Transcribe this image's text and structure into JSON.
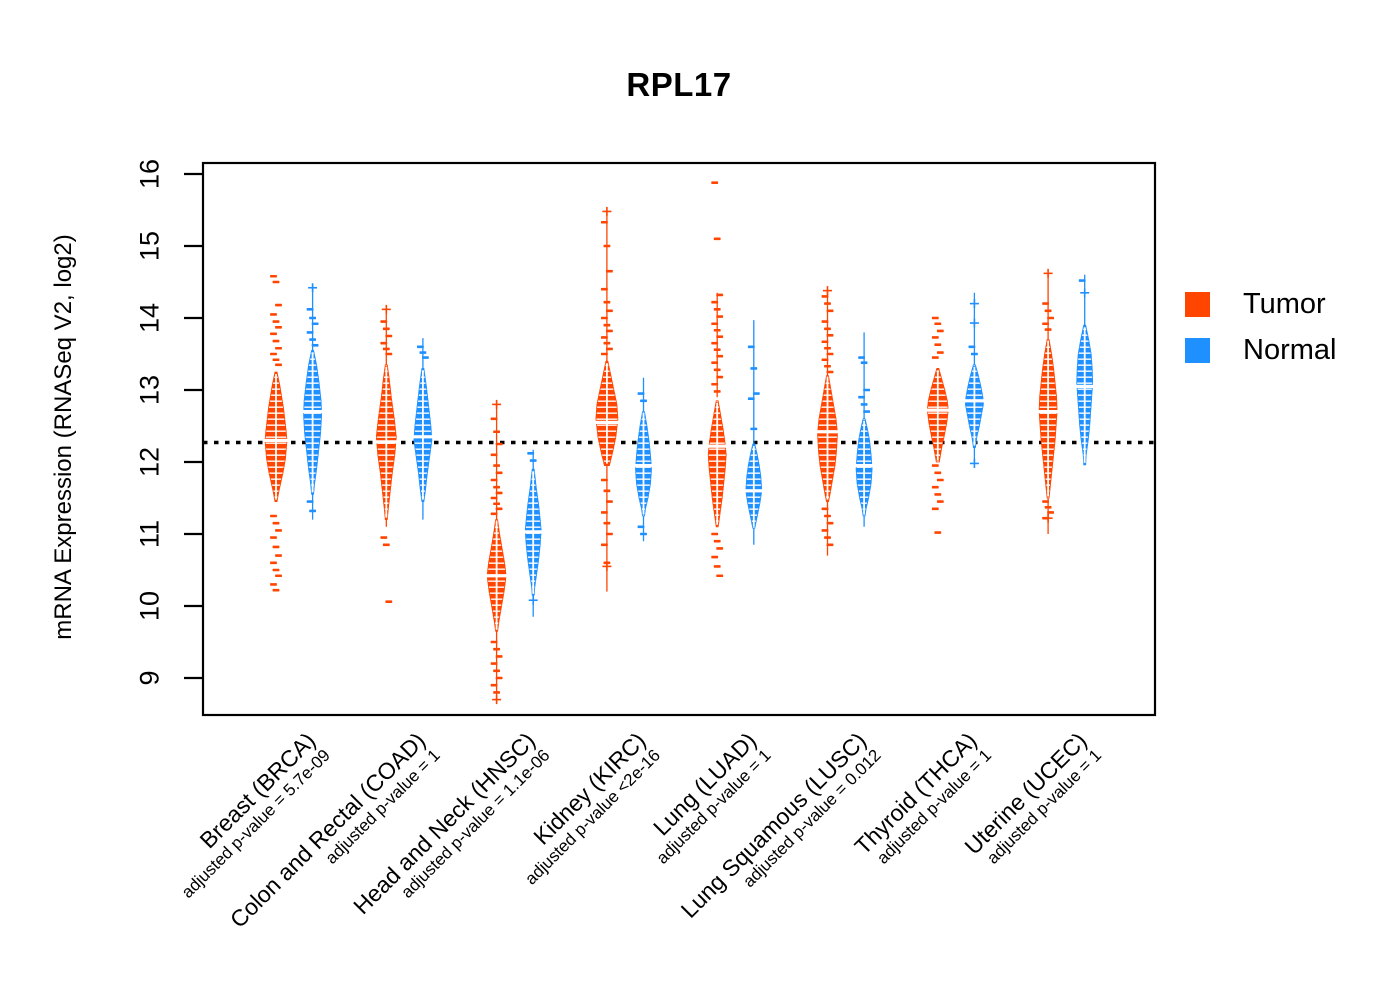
{
  "title": "RPL17",
  "y_axis": {
    "label": "mRNA Expression (RNASeq V2, log2)",
    "ticks": [
      9,
      10,
      11,
      12,
      13,
      14,
      15,
      16
    ]
  },
  "legend": {
    "items": [
      {
        "label": "Tumor",
        "color": "#FF4500"
      },
      {
        "label": "Normal",
        "color": "#1E90FF"
      }
    ]
  },
  "chart_data": {
    "type": "violin",
    "title": "RPL17",
    "ylabel": "mRNA Expression (RNASeq V2, log2)",
    "ylim": [
      8.6,
      16.1
    ],
    "yticks": [
      9,
      10,
      11,
      12,
      13,
      14,
      15,
      16
    ],
    "baseline_value": 12.27,
    "legend_position": "right",
    "series_names": [
      "Tumor",
      "Normal"
    ],
    "colors": {
      "tumor": "#FF4500",
      "normal": "#1E90FF"
    },
    "groups": [
      {
        "label": "Breast (BRCA)",
        "pvalue_label": "adjusted p-value = 5.7e-09",
        "tumor": {
          "median": 12.3,
          "profile": [
            [
              13.25,
              1
            ],
            [
              13.05,
              4
            ],
            [
              12.75,
              7.5
            ],
            [
              12.45,
              10
            ],
            [
              12.3,
              11
            ],
            [
              12.05,
              9.5
            ],
            [
              11.85,
              7
            ],
            [
              11.6,
              3
            ],
            [
              11.45,
              1
            ]
          ],
          "stem": null,
          "plus": [],
          "outliers_above": [
            14.58,
            14.5,
            14.18,
            14.05,
            13.95,
            13.87,
            13.78,
            13.68,
            13.58,
            13.5,
            13.42,
            13.35
          ],
          "outliers_below": [
            11.25,
            11.15,
            11.05,
            10.95,
            10.82,
            10.7,
            10.6,
            10.5,
            10.42,
            10.3,
            10.22
          ]
        },
        "normal": {
          "median": 12.7,
          "profile": [
            [
              13.55,
              1
            ],
            [
              13.35,
              4
            ],
            [
              13.1,
              6.5
            ],
            [
              12.85,
              8.5
            ],
            [
              12.65,
              9
            ],
            [
              12.4,
              8
            ],
            [
              12.15,
              6
            ],
            [
              11.9,
              4
            ],
            [
              11.7,
              2
            ],
            [
              11.55,
              1
            ]
          ],
          "stem": [
            11.2,
            14.45
          ],
          "plus": [
            14.42
          ],
          "outliers_above": [
            14.12,
            14.0,
            13.92,
            13.8,
            13.7,
            13.62
          ],
          "outliers_below": [
            11.45,
            11.32
          ]
        }
      },
      {
        "label": "Colon and Rectal (COAD)",
        "pvalue_label": "adjusted p-value = 1",
        "tumor": {
          "median": 12.28,
          "profile": [
            [
              13.35,
              1
            ],
            [
              13.15,
              3
            ],
            [
              12.9,
              5
            ],
            [
              12.6,
              8
            ],
            [
              12.35,
              10
            ],
            [
              12.1,
              8.5
            ],
            [
              11.85,
              6
            ],
            [
              11.6,
              4
            ],
            [
              11.35,
              2
            ],
            [
              11.2,
              1
            ]
          ],
          "stem": [
            11.1,
            14.12
          ],
          "plus": [
            14.12
          ],
          "outliers_above": [
            13.95,
            13.85,
            13.75,
            13.65,
            13.57,
            13.5
          ],
          "outliers_below": [
            10.95,
            10.85,
            10.06
          ]
        },
        "normal": {
          "median": 12.35,
          "profile": [
            [
              13.3,
              1
            ],
            [
              13.05,
              3.5
            ],
            [
              12.75,
              6
            ],
            [
              12.5,
              8
            ],
            [
              12.3,
              9
            ],
            [
              12.1,
              7
            ],
            [
              11.85,
              4.5
            ],
            [
              11.6,
              2.5
            ],
            [
              11.45,
              1
            ]
          ],
          "stem": [
            11.2,
            13.72
          ],
          "plus": [],
          "outliers_above": [
            13.6,
            13.52,
            13.45
          ],
          "outliers_below": []
        }
      },
      {
        "label": "Head and Neck (HNSC)",
        "pvalue_label": "adjusted p-value = 1.1e-06",
        "tumor": {
          "median": 10.42,
          "profile": [
            [
              11.2,
              1
            ],
            [
              11.0,
              3
            ],
            [
              10.8,
              5.5
            ],
            [
              10.6,
              8
            ],
            [
              10.42,
              9.5
            ],
            [
              10.2,
              7.5
            ],
            [
              10.0,
              5
            ],
            [
              9.8,
              2.5
            ],
            [
              9.65,
              1
            ]
          ],
          "stem": [
            8.7,
            12.8
          ],
          "plus": [
            12.8,
            8.7
          ],
          "outliers_above": [
            12.6,
            12.42,
            12.25,
            12.1,
            11.95,
            11.85,
            11.75,
            11.65,
            11.57,
            11.5,
            11.42,
            11.35,
            11.28
          ],
          "outliers_below": [
            9.5,
            9.4,
            9.3,
            9.2,
            9.1,
            9.0,
            8.9,
            8.8
          ]
        },
        "normal": {
          "median": 11.03,
          "profile": [
            [
              11.9,
              1
            ],
            [
              11.65,
              3
            ],
            [
              11.4,
              5.5
            ],
            [
              11.2,
              7
            ],
            [
              11.05,
              8
            ],
            [
              10.85,
              7
            ],
            [
              10.65,
              5.5
            ],
            [
              10.45,
              3.5
            ],
            [
              10.25,
              1.5
            ],
            [
              10.15,
              1
            ]
          ],
          "stem": [
            9.85,
            12.17
          ],
          "plus": [
            10.08
          ],
          "outliers_above": [
            12.12,
            12.02
          ],
          "outliers_below": []
        }
      },
      {
        "label": "Kidney (KIRC)",
        "pvalue_label": "adjusted p-value <2e-16",
        "tumor": {
          "median": 12.55,
          "profile": [
            [
              13.4,
              1
            ],
            [
              13.2,
              4
            ],
            [
              13.0,
              7
            ],
            [
              12.8,
              10
            ],
            [
              12.6,
              11
            ],
            [
              12.35,
              9
            ],
            [
              12.15,
              6
            ],
            [
              11.95,
              2.5
            ]
          ],
          "stem": [
            10.2,
            15.48
          ],
          "plus": [
            15.48,
            10.55
          ],
          "outliers_above": [
            15.33,
            15.0,
            14.65,
            14.4,
            14.22,
            14.1,
            14.0,
            13.9,
            13.82,
            13.73,
            13.65,
            13.57,
            13.5
          ],
          "outliers_below": [
            11.75,
            11.6,
            11.45,
            11.3,
            11.15,
            11.0,
            10.85,
            10.6
          ]
        },
        "normal": {
          "median": 11.95,
          "profile": [
            [
              12.7,
              1
            ],
            [
              12.5,
              3.5
            ],
            [
              12.3,
              5.5
            ],
            [
              12.1,
              7
            ],
            [
              11.9,
              8
            ],
            [
              11.7,
              7
            ],
            [
              11.5,
              4.5
            ],
            [
              11.35,
              2
            ],
            [
              11.25,
              1
            ]
          ],
          "stem": [
            10.9,
            13.17
          ],
          "plus": [],
          "outliers_above": [
            12.95,
            12.85
          ],
          "outliers_below": [
            11.1,
            11.0
          ]
        }
      },
      {
        "label": "Lung (LUAD)",
        "pvalue_label": "adjusted p-value = 1",
        "tumor": {
          "median": 12.22,
          "profile": [
            [
              12.85,
              1
            ],
            [
              12.65,
              3.5
            ],
            [
              12.45,
              6
            ],
            [
              12.25,
              8
            ],
            [
              12.1,
              9
            ],
            [
              11.9,
              8
            ],
            [
              11.7,
              6.5
            ],
            [
              11.5,
              5
            ],
            [
              11.3,
              3
            ],
            [
              11.1,
              1
            ]
          ],
          "stem": [
            12.9,
            14.35
          ],
          "plus": [],
          "outliers_above": [
            15.88,
            15.1,
            14.32,
            14.22,
            14.12,
            14.02,
            13.92,
            13.83,
            13.74,
            13.65,
            13.56,
            13.47,
            13.38,
            13.28,
            13.18,
            13.08,
            12.98
          ],
          "outliers_below": [
            11.0,
            10.9,
            10.8,
            10.68,
            10.55,
            10.42
          ]
        },
        "normal": {
          "median": 11.6,
          "profile": [
            [
              12.25,
              1
            ],
            [
              12.1,
              3.5
            ],
            [
              11.95,
              5.5
            ],
            [
              11.8,
              7
            ],
            [
              11.6,
              8
            ],
            [
              11.42,
              6
            ],
            [
              11.25,
              3.5
            ],
            [
              11.08,
              1
            ]
          ],
          "stem": [
            10.85,
            13.97
          ],
          "plus": [],
          "outliers_above": [
            13.6,
            13.3,
            12.95,
            12.88,
            12.46
          ],
          "outliers_below": []
        }
      },
      {
        "label": "Lung Squamous (LUSC)",
        "pvalue_label": "adjusted p-value = 0.012",
        "tumor": {
          "median": 12.42,
          "profile": [
            [
              13.2,
              1
            ],
            [
              13.0,
              3.5
            ],
            [
              12.8,
              6
            ],
            [
              12.6,
              8.5
            ],
            [
              12.4,
              10
            ],
            [
              12.15,
              9
            ],
            [
              11.95,
              7.5
            ],
            [
              11.75,
              5
            ],
            [
              11.55,
              2.5
            ],
            [
              11.45,
              1
            ]
          ],
          "stem": [
            10.7,
            14.38
          ],
          "plus": [
            14.38
          ],
          "outliers_above": [
            14.3,
            14.2,
            14.1,
            13.95,
            13.85,
            13.76,
            13.67,
            13.58,
            13.5,
            13.42,
            13.33,
            13.25
          ],
          "outliers_below": [
            11.35,
            11.25,
            11.15,
            11.05,
            10.95,
            10.85
          ]
        },
        "normal": {
          "median": 11.95,
          "profile": [
            [
              12.6,
              1
            ],
            [
              12.45,
              3.5
            ],
            [
              12.3,
              5.5
            ],
            [
              12.1,
              7
            ],
            [
              11.9,
              8
            ],
            [
              11.7,
              7
            ],
            [
              11.5,
              4.5
            ],
            [
              11.35,
              2
            ],
            [
              11.25,
              1
            ]
          ],
          "stem": [
            11.1,
            13.8
          ],
          "plus": [],
          "outliers_above": [
            13.45,
            13.38,
            13.0,
            12.9,
            12.8,
            12.7
          ],
          "outliers_below": []
        }
      },
      {
        "label": "Thyroid (THCA)",
        "pvalue_label": "adjusted p-value = 1",
        "tumor": {
          "median": 12.72,
          "profile": [
            [
              13.3,
              1
            ],
            [
              13.15,
              4
            ],
            [
              13.0,
              7
            ],
            [
              12.85,
              9.5
            ],
            [
              12.72,
              10.5
            ],
            [
              12.55,
              9
            ],
            [
              12.4,
              7
            ],
            [
              12.2,
              4
            ],
            [
              12.0,
              1.5
            ]
          ],
          "stem": null,
          "plus": [],
          "outliers_above": [
            14.0,
            13.92,
            13.82,
            13.73,
            13.63,
            13.52,
            13.45
          ],
          "outliers_below": [
            11.95,
            11.85,
            11.75,
            11.65,
            11.55,
            11.45,
            11.35,
            11.02
          ]
        },
        "normal": {
          "median": 12.85,
          "profile": [
            [
              13.35,
              1
            ],
            [
              13.2,
              4
            ],
            [
              13.05,
              6.5
            ],
            [
              12.9,
              8.5
            ],
            [
              12.8,
              9
            ],
            [
              12.65,
              7
            ],
            [
              12.5,
              5
            ],
            [
              12.35,
              2.5
            ],
            [
              12.2,
              1
            ]
          ],
          "stem": [
            11.98,
            14.35
          ],
          "plus": [
            14.2,
            13.93,
            11.98
          ],
          "outliers_above": [
            13.6,
            13.5
          ],
          "outliers_below": []
        }
      },
      {
        "label": "Uterine (UCEC)",
        "pvalue_label": "adjusted p-value = 1",
        "tumor": {
          "median": 12.7,
          "profile": [
            [
              13.7,
              1
            ],
            [
              13.5,
              3.5
            ],
            [
              13.3,
              5.5
            ],
            [
              13.1,
              7
            ],
            [
              12.9,
              8.5
            ],
            [
              12.7,
              9
            ],
            [
              12.5,
              8
            ],
            [
              12.3,
              7
            ],
            [
              12.1,
              5.5
            ],
            [
              11.9,
              4
            ],
            [
              11.7,
              2.5
            ],
            [
              11.5,
              1
            ]
          ],
          "stem": [
            11.0,
            14.62
          ],
          "plus": [
            14.62,
            11.22
          ],
          "outliers_above": [
            14.2,
            14.1,
            14.0,
            13.92,
            13.84
          ],
          "outliers_below": [
            11.45,
            11.37,
            11.3,
            11.22
          ]
        },
        "normal": {
          "median": 13.05,
          "profile": [
            [
              13.9,
              1
            ],
            [
              13.7,
              4
            ],
            [
              13.5,
              6.5
            ],
            [
              13.3,
              7.5
            ],
            [
              13.1,
              8
            ],
            [
              12.9,
              7
            ],
            [
              12.7,
              6
            ],
            [
              12.5,
              5
            ],
            [
              12.3,
              3.5
            ],
            [
              12.1,
              1.5
            ],
            [
              11.96,
              1
            ]
          ],
          "stem": [
            11.96,
            14.6
          ],
          "plus": [
            14.35
          ],
          "outliers_above": [
            14.52
          ],
          "outliers_below": []
        }
      }
    ]
  }
}
